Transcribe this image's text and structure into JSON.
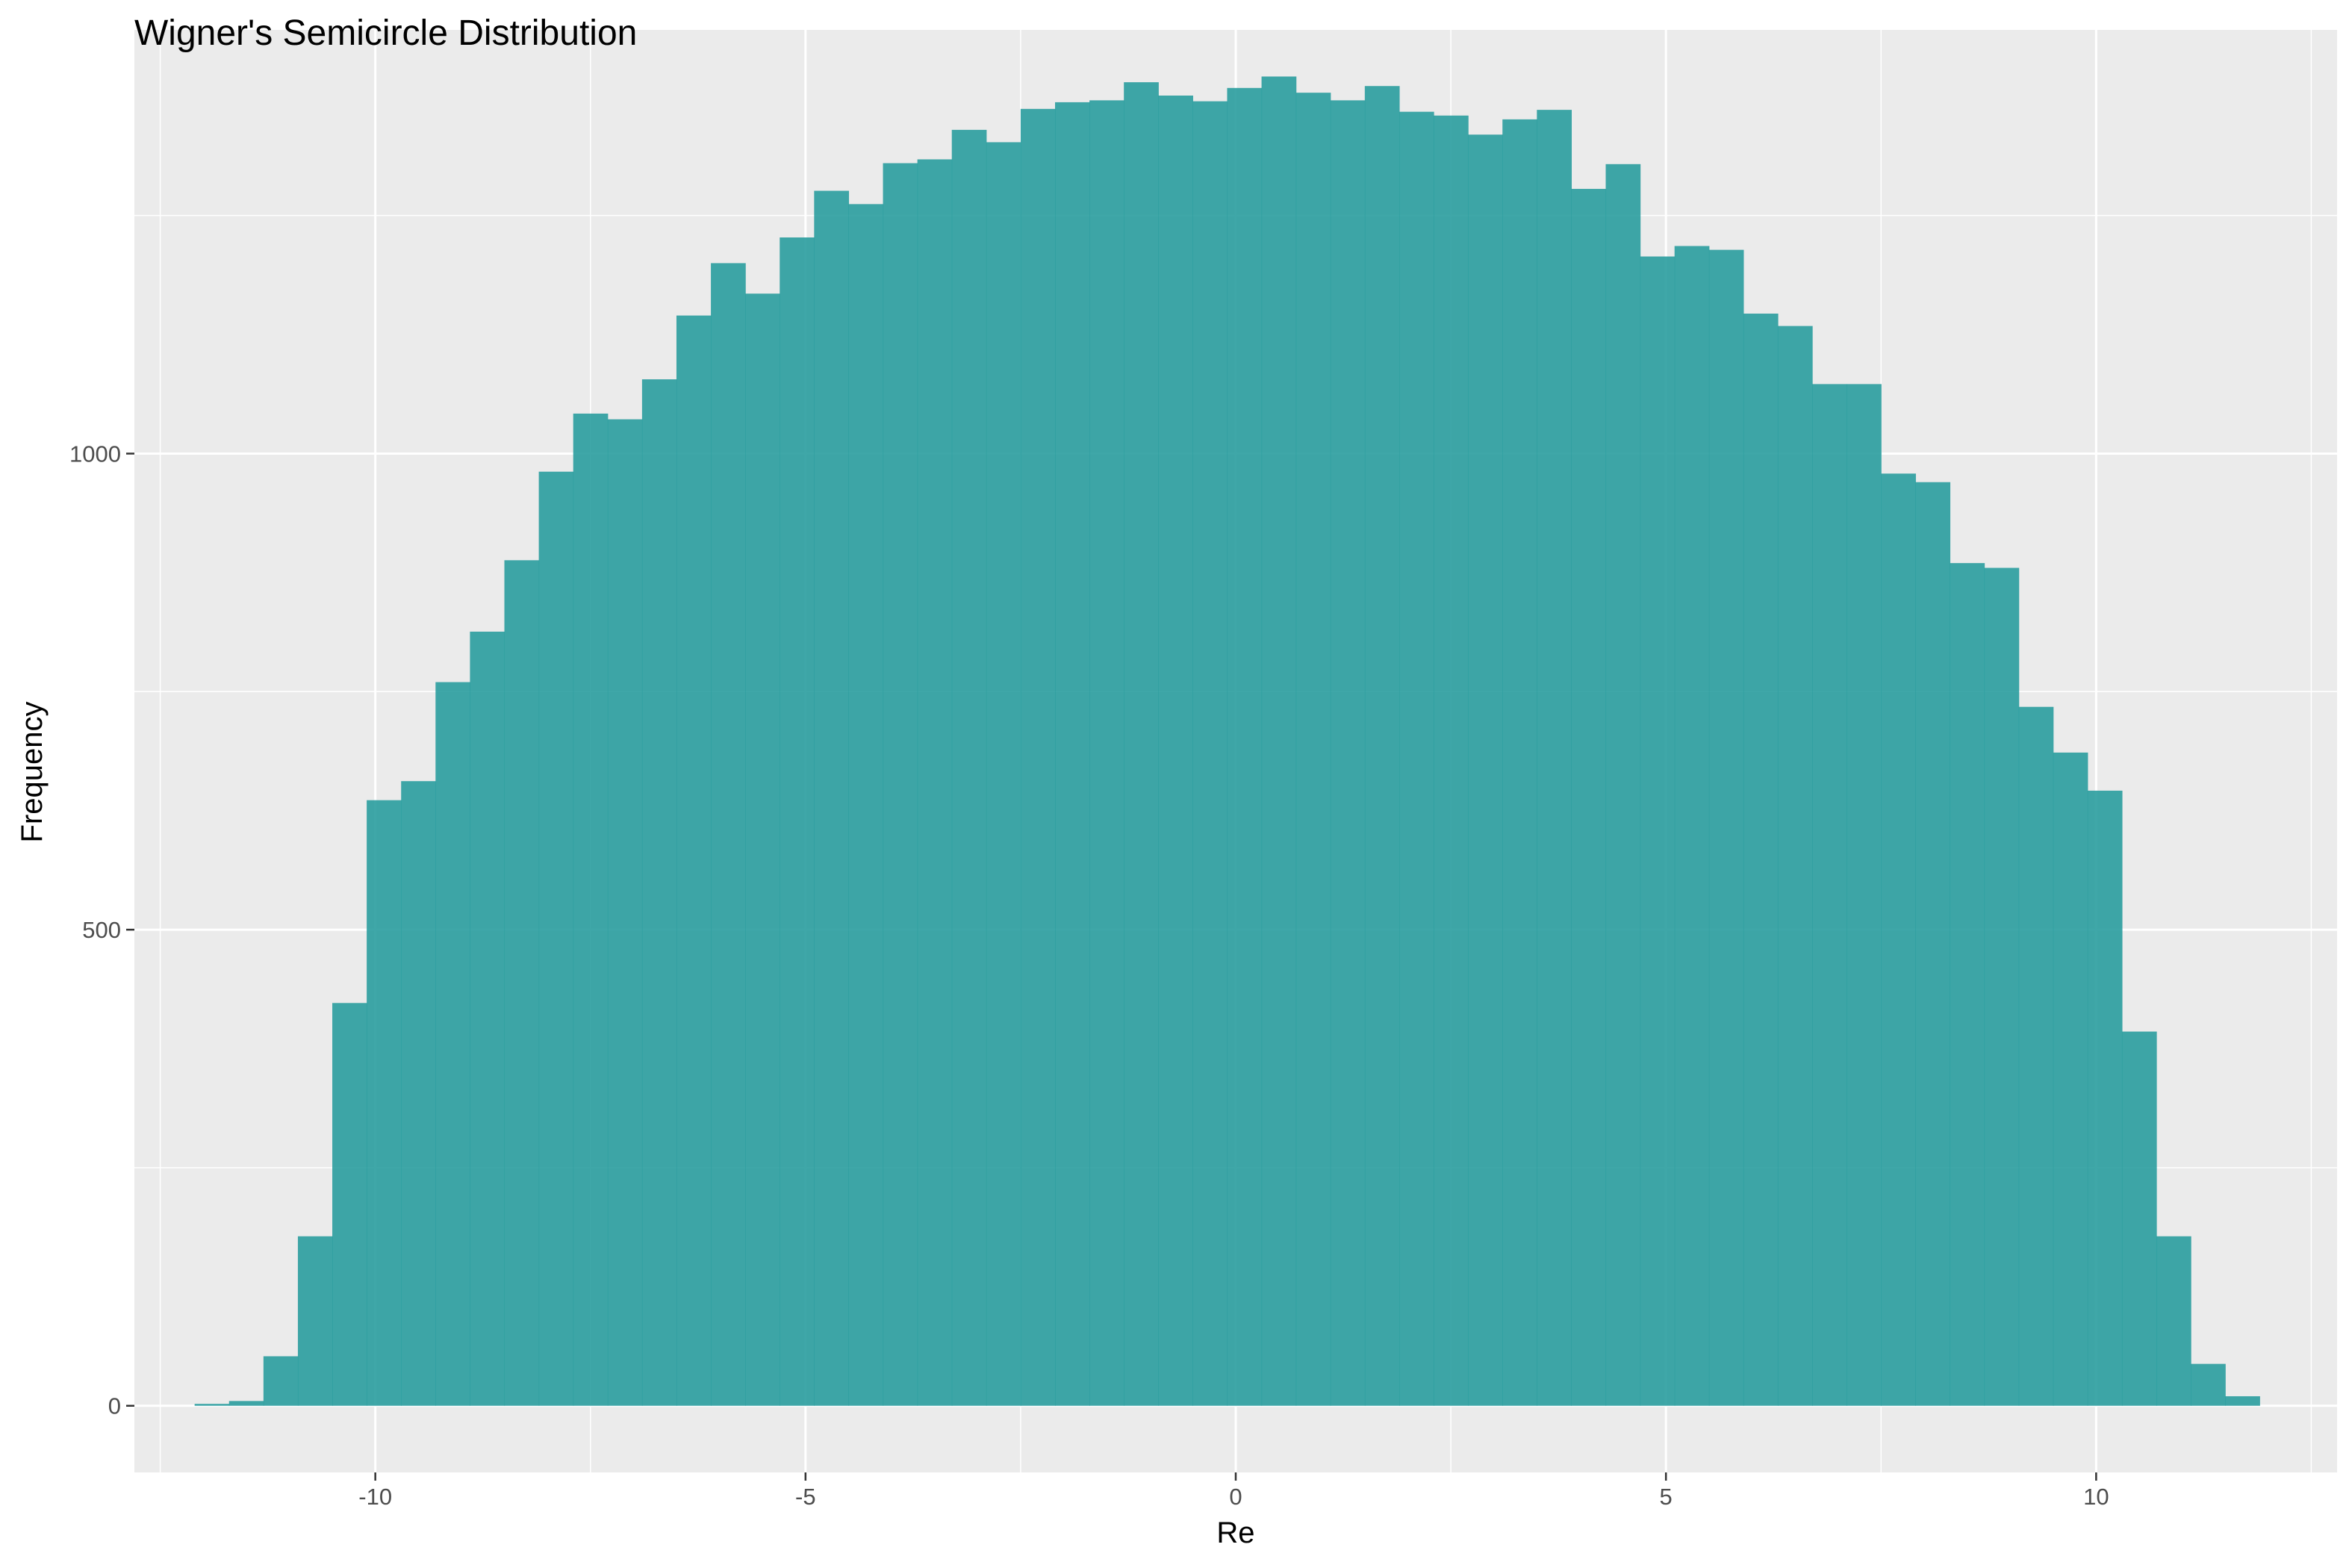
{
  "chart_data": {
    "type": "bar",
    "title": "Wigner's Semicircle Distribution",
    "xlabel": "Re",
    "ylabel": "Frequency",
    "xlim": [
      -12.8,
      12.8
    ],
    "ylim": [
      -70,
      1445
    ],
    "x_ticks": [
      -10,
      -5,
      0,
      5,
      10
    ],
    "x_tick_labels": [
      "-10",
      "-5",
      "0",
      "5",
      "10"
    ],
    "y_ticks": [
      0,
      500,
      1000
    ],
    "y_tick_labels": [
      "0",
      "500",
      "1000"
    ],
    "bin_width": 0.4,
    "bins_start": -12.1,
    "values": [
      2,
      5,
      52,
      178,
      423,
      636,
      656,
      760,
      813,
      888,
      981,
      1042,
      1036,
      1078,
      1145,
      1200,
      1168,
      1227,
      1276,
      1262,
      1305,
      1309,
      1340,
      1327,
      1362,
      1369,
      1371,
      1390,
      1376,
      1370,
      1384,
      1396,
      1379,
      1371,
      1386,
      1359,
      1355,
      1335,
      1351,
      1361,
      1278,
      1304,
      1207,
      1218,
      1214,
      1147,
      1134,
      1073,
      1073,
      979,
      970,
      885,
      880,
      734,
      686,
      646,
      393,
      178,
      44,
      10
    ],
    "fill_color": "#2a9d9e",
    "fill_opacity": 0.9,
    "panel_background": "#ebebeb",
    "grid": true,
    "grid_color": "#ffffff"
  }
}
